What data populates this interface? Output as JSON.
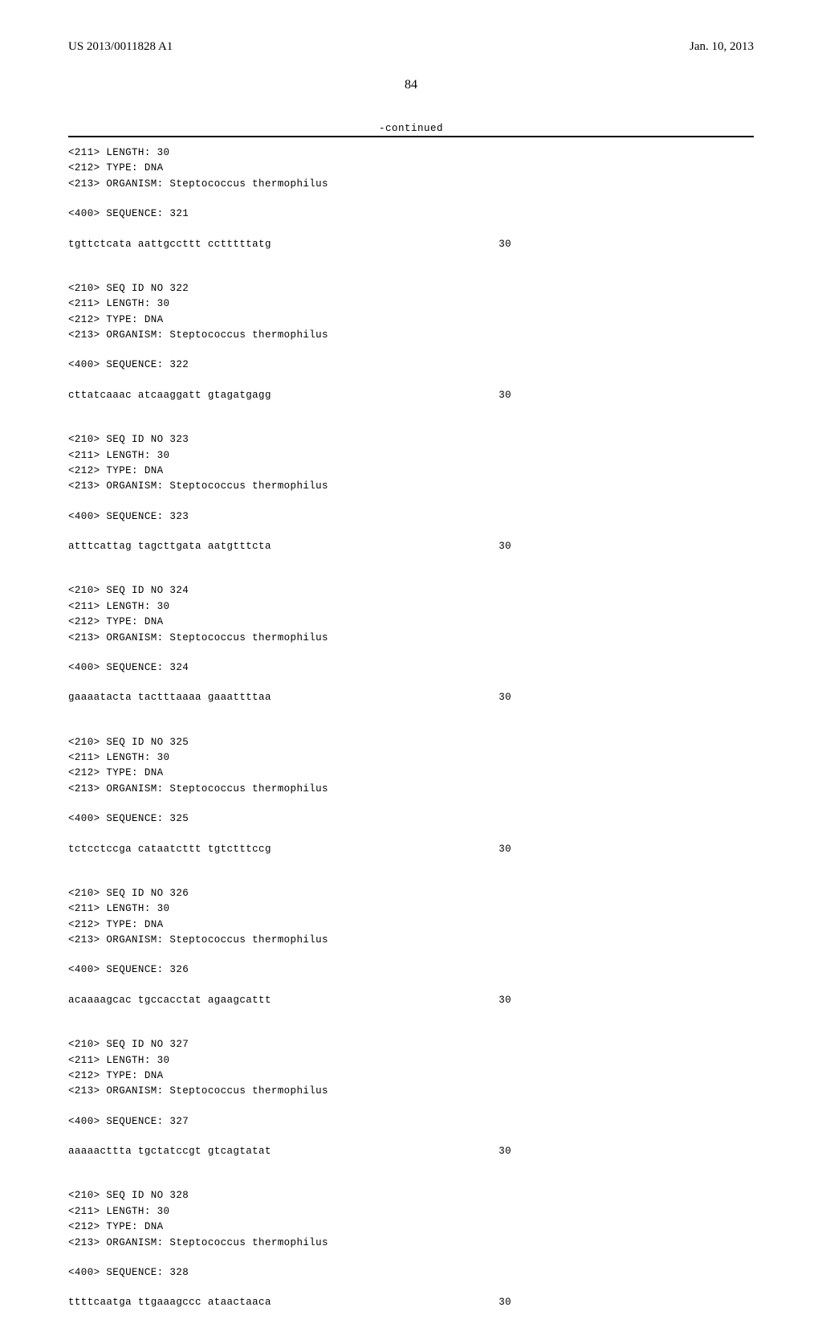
{
  "header": {
    "publication_number": "US 2013/0011828 A1",
    "publication_date": "Jan. 10, 2013"
  },
  "page_number": "84",
  "continued_label": "-continued",
  "sequence_width_chars": 60,
  "colors": {
    "text": "#000000",
    "background": "#ffffff",
    "rule": "#000000"
  },
  "typography": {
    "header_font": "Times New Roman",
    "header_fontsize_pt": 11,
    "body_font": "Courier New",
    "body_fontsize_pt": 9,
    "line_height": 1.55
  },
  "leading_block": {
    "lines": [
      "<211> LENGTH: 30",
      "<212> TYPE: DNA",
      "<213> ORGANISM: Steptococcus thermophilus"
    ],
    "seq_label": "<400> SEQUENCE: 321",
    "sequence": "tgttctcata aattgccttt cctttttatg",
    "count": "30"
  },
  "blocks": [
    {
      "id": "322",
      "header_lines": [
        "<210> SEQ ID NO 322",
        "<211> LENGTH: 30",
        "<212> TYPE: DNA",
        "<213> ORGANISM: Steptococcus thermophilus"
      ],
      "seq_label": "<400> SEQUENCE: 322",
      "sequence": "cttatcaaac atcaaggatt gtagatgagg",
      "count": "30"
    },
    {
      "id": "323",
      "header_lines": [
        "<210> SEQ ID NO 323",
        "<211> LENGTH: 30",
        "<212> TYPE: DNA",
        "<213> ORGANISM: Steptococcus thermophilus"
      ],
      "seq_label": "<400> SEQUENCE: 323",
      "sequence": "atttcattag tagcttgata aatgtttcta",
      "count": "30"
    },
    {
      "id": "324",
      "header_lines": [
        "<210> SEQ ID NO 324",
        "<211> LENGTH: 30",
        "<212> TYPE: DNA",
        "<213> ORGANISM: Steptococcus thermophilus"
      ],
      "seq_label": "<400> SEQUENCE: 324",
      "sequence": "gaaaatacta tactttaaaa gaaattttaa",
      "count": "30"
    },
    {
      "id": "325",
      "header_lines": [
        "<210> SEQ ID NO 325",
        "<211> LENGTH: 30",
        "<212> TYPE: DNA",
        "<213> ORGANISM: Steptococcus thermophilus"
      ],
      "seq_label": "<400> SEQUENCE: 325",
      "sequence": "tctcctccga cataatcttt tgtctttccg",
      "count": "30"
    },
    {
      "id": "326",
      "header_lines": [
        "<210> SEQ ID NO 326",
        "<211> LENGTH: 30",
        "<212> TYPE: DNA",
        "<213> ORGANISM: Steptococcus thermophilus"
      ],
      "seq_label": "<400> SEQUENCE: 326",
      "sequence": "acaaaagcac tgccacctat agaagcattt",
      "count": "30"
    },
    {
      "id": "327",
      "header_lines": [
        "<210> SEQ ID NO 327",
        "<211> LENGTH: 30",
        "<212> TYPE: DNA",
        "<213> ORGANISM: Steptococcus thermophilus"
      ],
      "seq_label": "<400> SEQUENCE: 327",
      "sequence": "aaaaacttta tgctatccgt gtcagtatat",
      "count": "30"
    },
    {
      "id": "328",
      "header_lines": [
        "<210> SEQ ID NO 328",
        "<211> LENGTH: 30",
        "<212> TYPE: DNA",
        "<213> ORGANISM: Steptococcus thermophilus"
      ],
      "seq_label": "<400> SEQUENCE: 328",
      "sequence": "ttttcaatga ttgaaagccc ataactaaca",
      "count": "30"
    }
  ]
}
